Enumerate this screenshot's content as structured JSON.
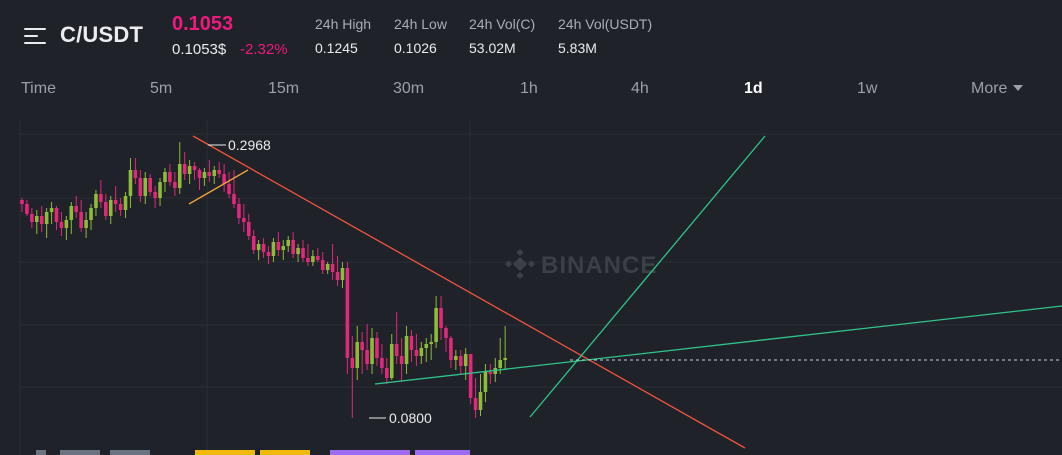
{
  "header": {
    "pair": "C/USDT",
    "last_price": "0.1053",
    "sub_price": "0.1053$",
    "change": "-2.32%",
    "stats": [
      {
        "label": "24h High",
        "value": "0.1245"
      },
      {
        "label": "24h Low",
        "value": "0.1026"
      },
      {
        "label": "24h Vol(C)",
        "value": "53.02M"
      },
      {
        "label": "24h Vol(USDT)",
        "value": "5.83M"
      }
    ]
  },
  "tabs": {
    "time": "Time",
    "m5": "5m",
    "m15": "15m",
    "m30": "30m",
    "h1": "1h",
    "h4": "4h",
    "d1": "1d",
    "w1": "1w",
    "more": "More",
    "active": "1d"
  },
  "chart": {
    "high_label": "0.2968",
    "low_label": "0.0800",
    "watermark": "BINANCE"
  },
  "colors": {
    "up": "#8dbb3a",
    "down": "#e0287d",
    "trend_red": "#f0533f",
    "trend_green": "#30c48d",
    "support_orange": "#f0a23a",
    "accent_pink": "#f0197d"
  }
}
